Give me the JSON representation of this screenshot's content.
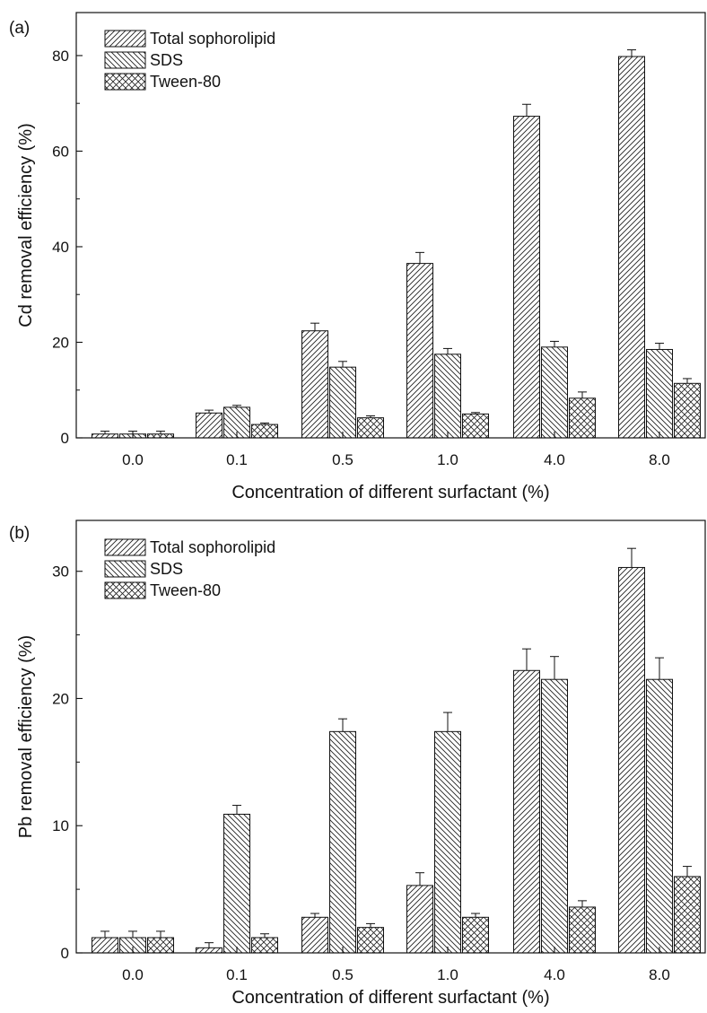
{
  "chart_data": [
    {
      "type": "bar",
      "panel_label": "(a)",
      "xlabel": "Concentration of different surfactant (%)",
      "ylabel": "Cd removal efficiency (%)",
      "categories": [
        "0.0",
        "0.1",
        "0.5",
        "1.0",
        "4.0",
        "8.0"
      ],
      "ylim": [
        0,
        89
      ],
      "yticks": [
        0,
        20,
        40,
        60,
        80
      ],
      "grid": false,
      "legend_position": "top-left",
      "series": [
        {
          "name": "Total sophorolipid",
          "pattern": "diagonal-forward",
          "values": [
            0.8,
            5.2,
            22.4,
            36.5,
            67.3,
            79.8
          ],
          "errors": [
            0.6,
            0.6,
            1.6,
            2.3,
            2.5,
            1.4
          ]
        },
        {
          "name": "SDS",
          "pattern": "diagonal-backward",
          "values": [
            0.8,
            6.4,
            14.8,
            17.5,
            19.0,
            18.5
          ],
          "errors": [
            0.6,
            0.4,
            1.2,
            1.2,
            1.2,
            1.3
          ]
        },
        {
          "name": "Tween-80",
          "pattern": "crosshatch",
          "values": [
            0.8,
            2.8,
            4.2,
            5.0,
            8.3,
            11.4
          ],
          "errors": [
            0.6,
            0.3,
            0.4,
            0.3,
            1.3,
            1.0
          ]
        }
      ]
    },
    {
      "type": "bar",
      "panel_label": "(b)",
      "xlabel": "Concentration of different surfactant (%)",
      "ylabel": "Pb removal efficiency (%)",
      "categories": [
        "0.0",
        "0.1",
        "0.5",
        "1.0",
        "4.0",
        "8.0"
      ],
      "ylim": [
        0,
        34
      ],
      "yticks": [
        0,
        10,
        20,
        30
      ],
      "grid": false,
      "legend_position": "top-left",
      "series": [
        {
          "name": "Total sophorolipid",
          "pattern": "diagonal-forward",
          "values": [
            1.2,
            0.4,
            2.8,
            5.3,
            22.2,
            30.3
          ],
          "errors": [
            0.5,
            0.4,
            0.3,
            1.0,
            1.7,
            1.5
          ]
        },
        {
          "name": "SDS",
          "pattern": "diagonal-backward",
          "values": [
            1.2,
            10.9,
            17.4,
            17.4,
            21.5,
            21.5
          ],
          "errors": [
            0.5,
            0.7,
            1.0,
            1.5,
            1.8,
            1.7
          ]
        },
        {
          "name": "Tween-80",
          "pattern": "crosshatch",
          "values": [
            1.2,
            1.2,
            2.0,
            2.8,
            3.6,
            6.0
          ],
          "errors": [
            0.5,
            0.3,
            0.3,
            0.3,
            0.5,
            0.8
          ]
        }
      ]
    }
  ]
}
